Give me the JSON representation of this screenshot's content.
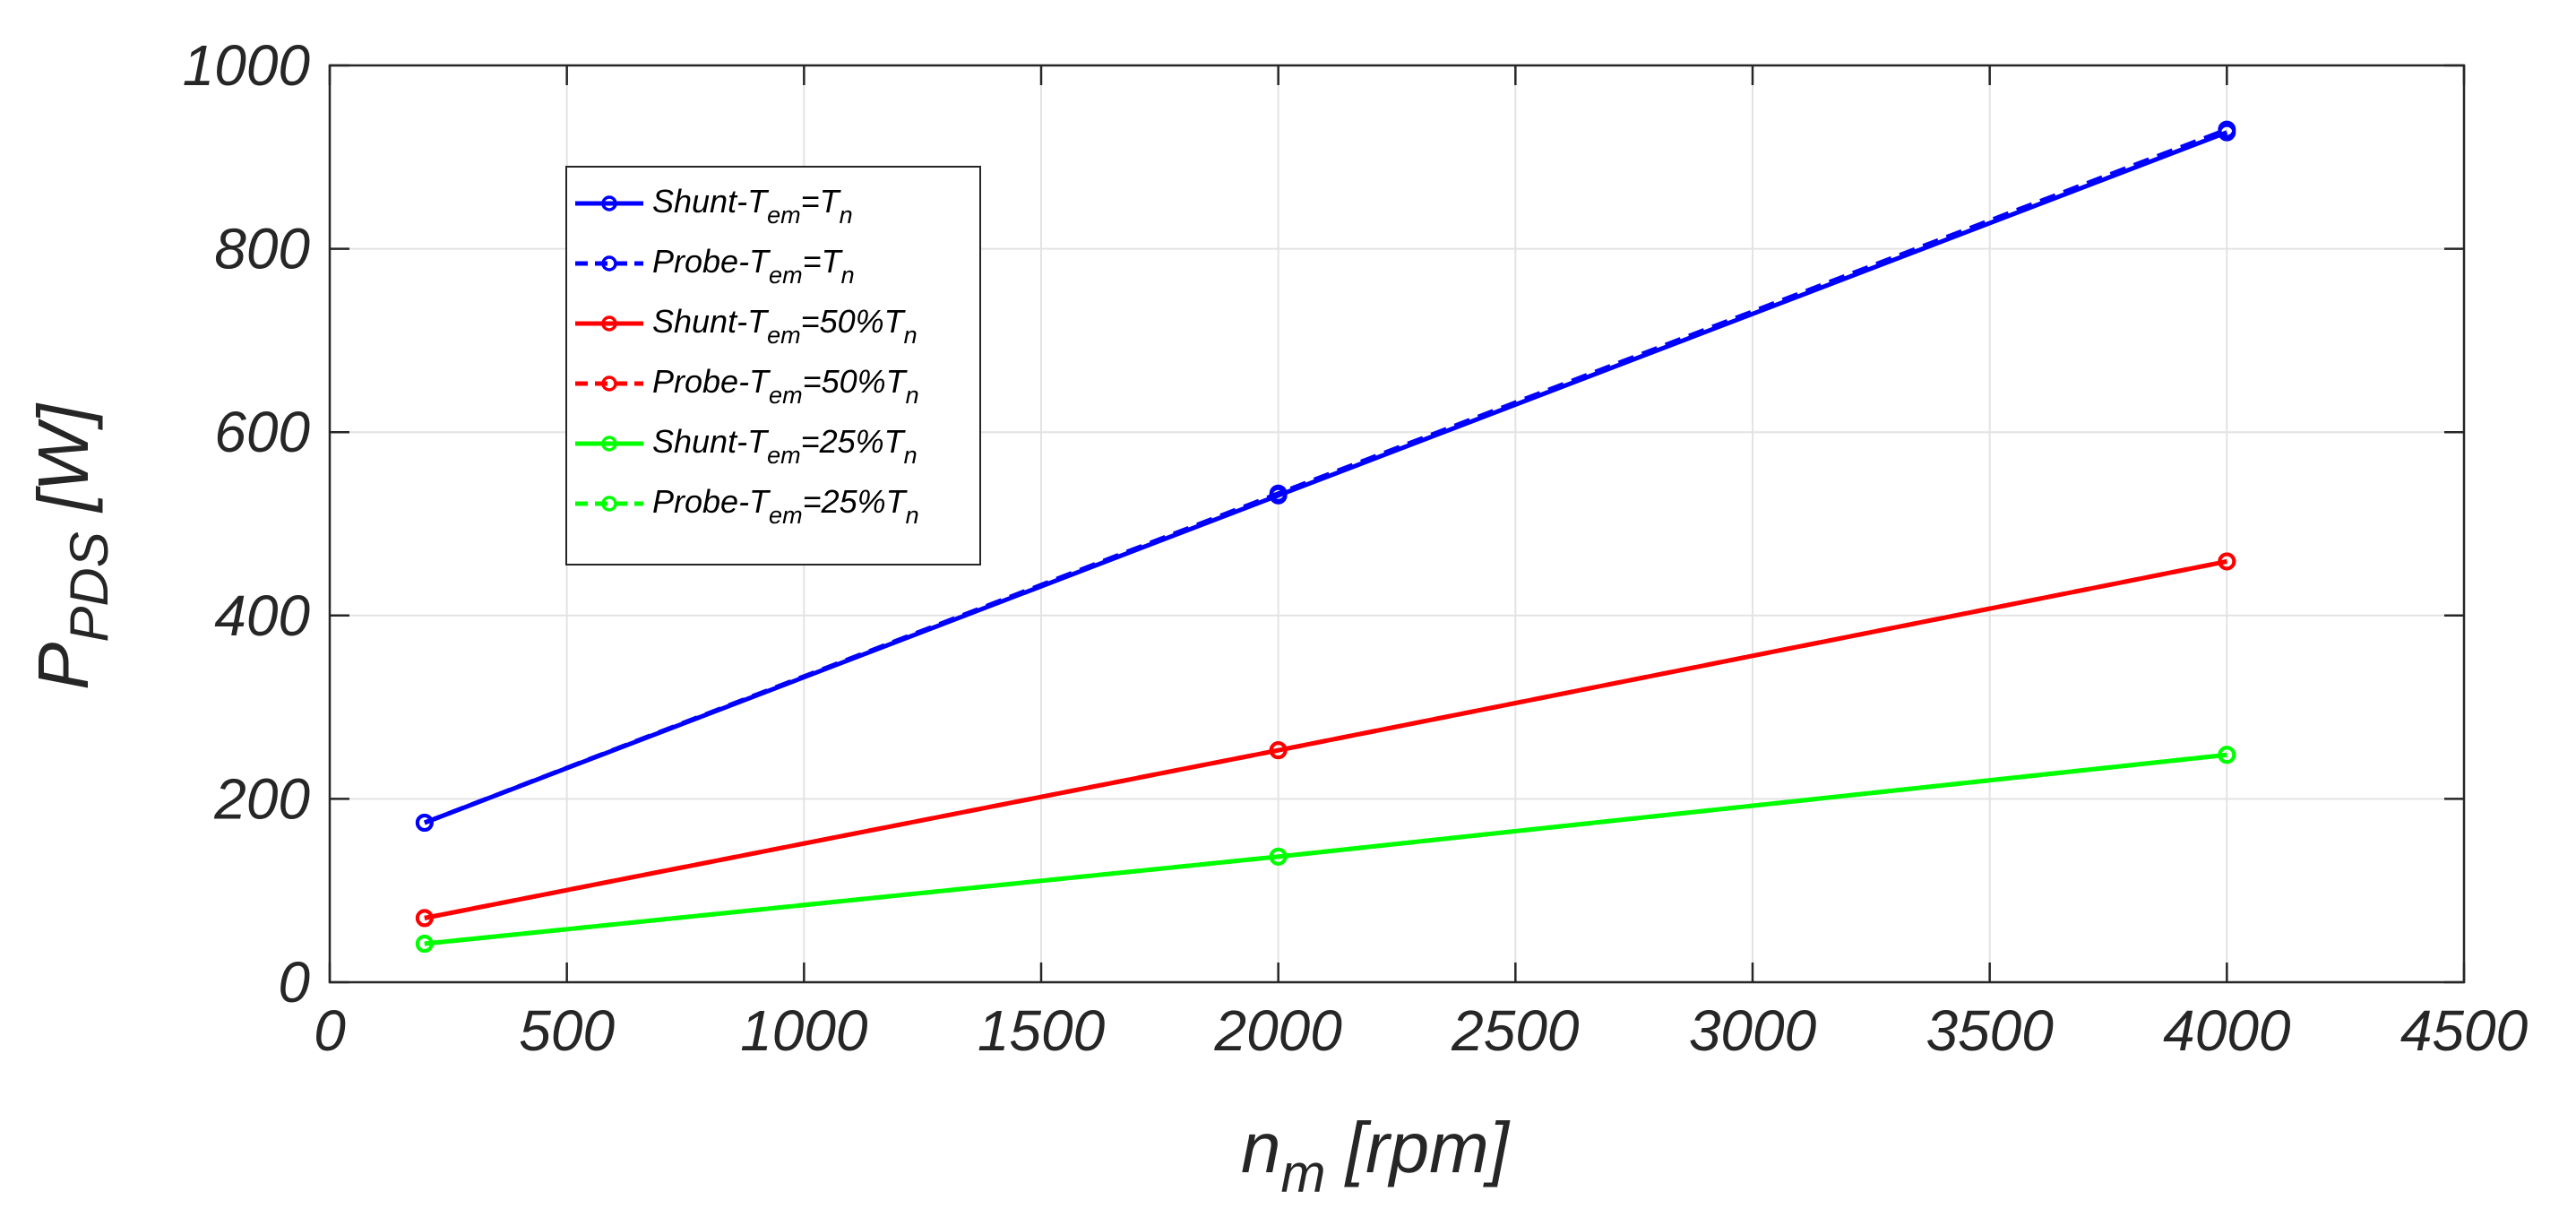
{
  "chart_data": {
    "type": "line",
    "title": "",
    "xlabel": {
      "main": "n",
      "sub": "m",
      "unit": "[rpm]"
    },
    "ylabel": {
      "main": "P",
      "sub": "PDS",
      "unit": "[W]"
    },
    "xlim": [
      0,
      4500
    ],
    "ylim": [
      0,
      1000
    ],
    "xticks": [
      0,
      500,
      1000,
      1500,
      2000,
      2500,
      3000,
      3500,
      4000,
      4500
    ],
    "yticks": [
      0,
      200,
      400,
      600,
      800,
      1000
    ],
    "grid": true,
    "legend_position": "top-left",
    "x": [
      200,
      2000,
      4000
    ],
    "series": [
      {
        "name": "Shunt-Tem=Tn",
        "legend": {
          "pre": "Shunt-T",
          "sub1": "em",
          "mid": "=T",
          "sub2": "n"
        },
        "color": "#0000ff",
        "style": "solid",
        "values": [
          174,
          531,
          927
        ]
      },
      {
        "name": "Probe-Tem=Tn",
        "legend": {
          "pre": "Probe-T",
          "sub1": "em",
          "mid": "=T",
          "sub2": "n"
        },
        "color": "#0000ff",
        "style": "dashed",
        "values": [
          174,
          533,
          930
        ]
      },
      {
        "name": "Shunt-Tem=50%Tn",
        "legend": {
          "pre": "Shunt-T",
          "sub1": "em",
          "mid": "=50%T",
          "sub2": "n"
        },
        "color": "#ff0000",
        "style": "solid",
        "values": [
          70,
          253,
          459
        ]
      },
      {
        "name": "Probe-Tem=50%Tn",
        "legend": {
          "pre": "Probe-T",
          "sub1": "em",
          "mid": "=50%T",
          "sub2": "n"
        },
        "color": "#ff0000",
        "style": "dashed",
        "values": [
          70,
          253,
          459
        ]
      },
      {
        "name": "Shunt-Tem=25%Tn",
        "legend": {
          "pre": "Shunt-T",
          "sub1": "em",
          "mid": "=25%T",
          "sub2": "n"
        },
        "color": "#00ff00",
        "style": "solid",
        "values": [
          42,
          137,
          248
        ]
      },
      {
        "name": "Probe-Tem=25%Tn",
        "legend": {
          "pre": "Probe-T",
          "sub1": "em",
          "mid": "=25%T",
          "sub2": "n"
        },
        "color": "#00ff00",
        "style": "dashed",
        "values": [
          42,
          137,
          248
        ]
      }
    ]
  }
}
